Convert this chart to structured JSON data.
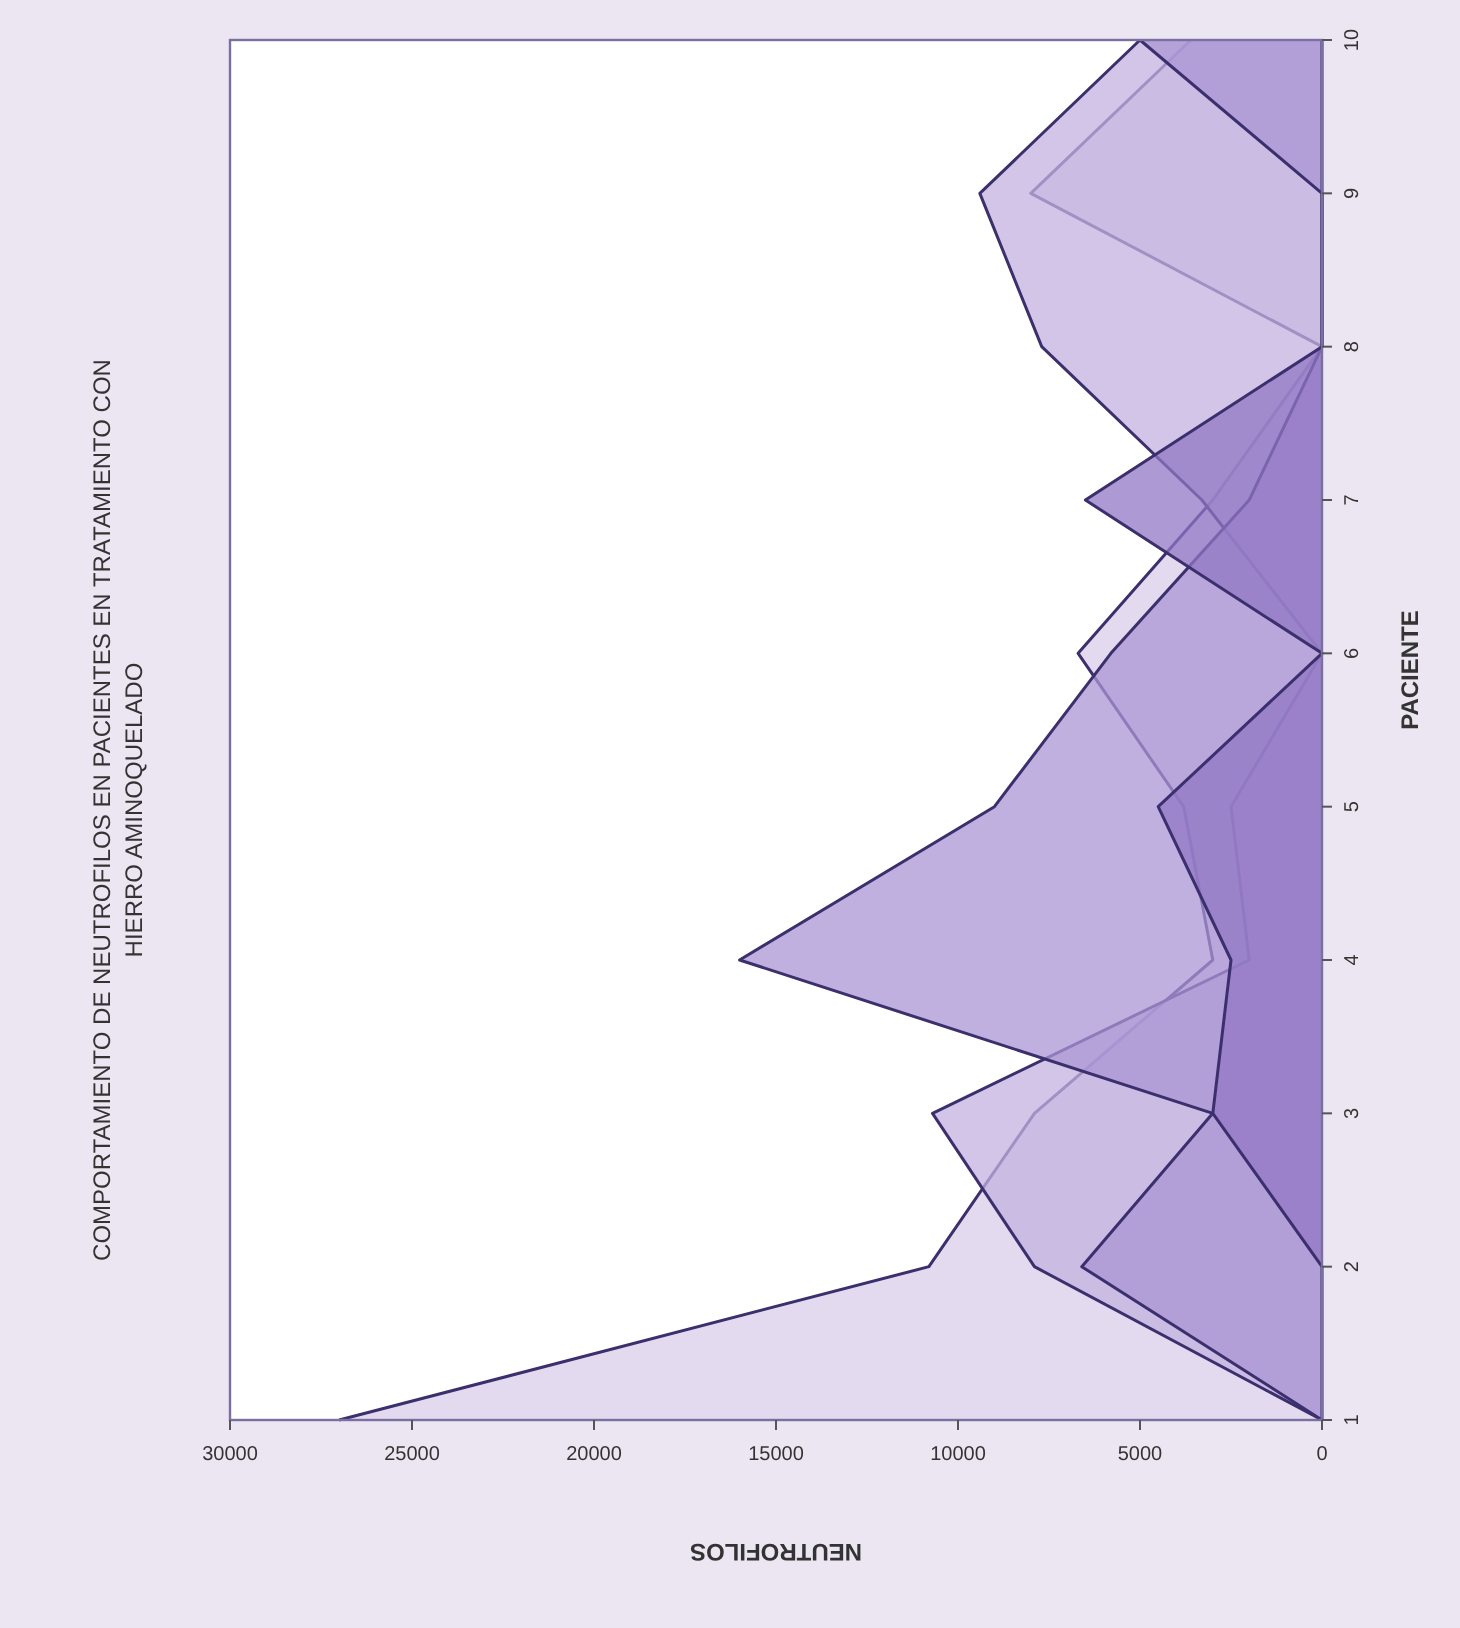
{
  "chart_data": {
    "type": "area",
    "orientation": "horizontal",
    "title": "COMPORTAMIENTO DE NEUTROFILOS EN PACIENTES EN TRATAMIENTO CON HIERRO AMINOQUELADO",
    "xlabel": "NEUTROFILOS",
    "ylabel": "PACIENTE",
    "categories": [
      "10",
      "9",
      "8",
      "7",
      "6",
      "5",
      "4",
      "3",
      "2",
      "1"
    ],
    "xlim": [
      30000,
      0
    ],
    "xticks": [
      30000,
      25000,
      20000,
      15000,
      10000,
      5000,
      0
    ],
    "grid": false,
    "series": [
      {
        "color": "#d9cdea",
        "values": [
          3600,
          8000,
          0,
          3000,
          6700,
          3800,
          3000,
          7900,
          10800,
          27000
        ]
      },
      {
        "color": "#c3b1e0",
        "values": [
          5000,
          9400,
          7700,
          3300,
          0,
          2500,
          2000,
          10700,
          7900,
          0
        ]
      },
      {
        "color": "#ab95d4",
        "values": [
          5000,
          0,
          0,
          2000,
          5800,
          9000,
          16000,
          3000,
          6600,
          0
        ]
      },
      {
        "color": "#9177c4",
        "values": [
          0,
          0,
          0,
          6500,
          0,
          4500,
          2500,
          3000,
          0,
          0
        ]
      }
    ]
  }
}
